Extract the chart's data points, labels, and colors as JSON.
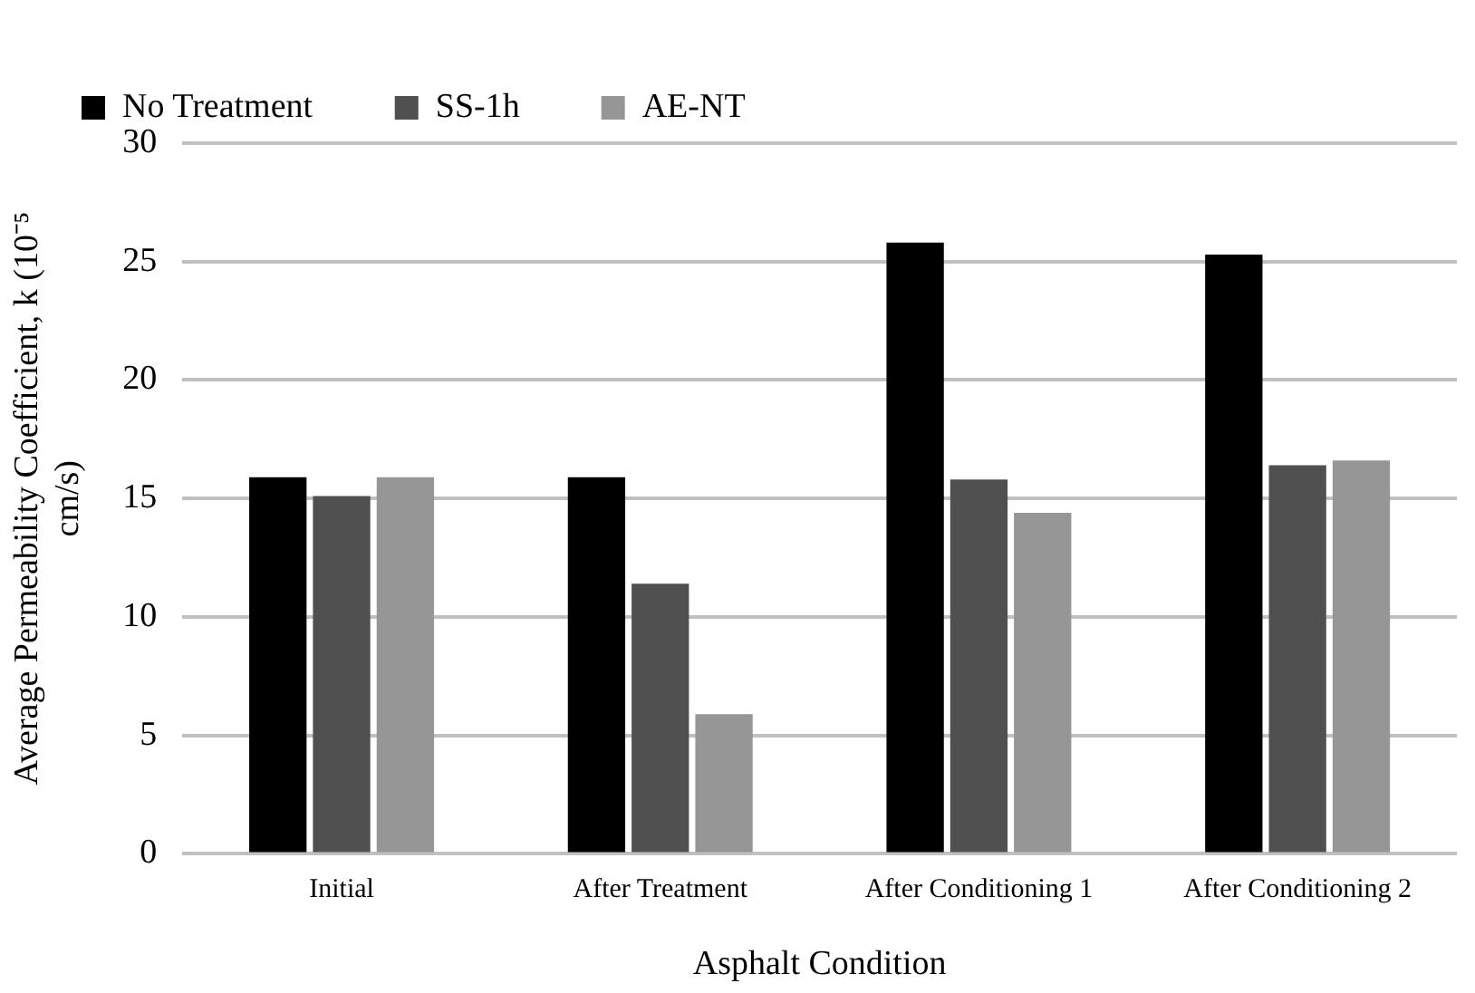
{
  "chart_data": {
    "type": "bar",
    "xlabel": "Asphalt Condition",
    "ylabel": "Average Permeability Coefficient, k  (10⁻⁵ cm/s)",
    "categories": [
      "Initial",
      "After Treatment",
      "After Conditioning 1",
      "After Conditioning 2"
    ],
    "series": [
      {
        "name": "No Treatment",
        "color": "#000000",
        "values": [
          15.9,
          15.9,
          25.8,
          25.3
        ]
      },
      {
        "name": "SS-1h",
        "color": "#505050",
        "values": [
          15.1,
          11.4,
          15.8,
          16.4
        ]
      },
      {
        "name": "AE-NT",
        "color": "#969696",
        "values": [
          15.9,
          5.9,
          14.4,
          16.6
        ]
      }
    ],
    "ylim": [
      0,
      30
    ],
    "yticks": [
      0,
      5,
      10,
      15,
      20,
      25,
      30
    ],
    "grid": "y",
    "legend": "top"
  }
}
